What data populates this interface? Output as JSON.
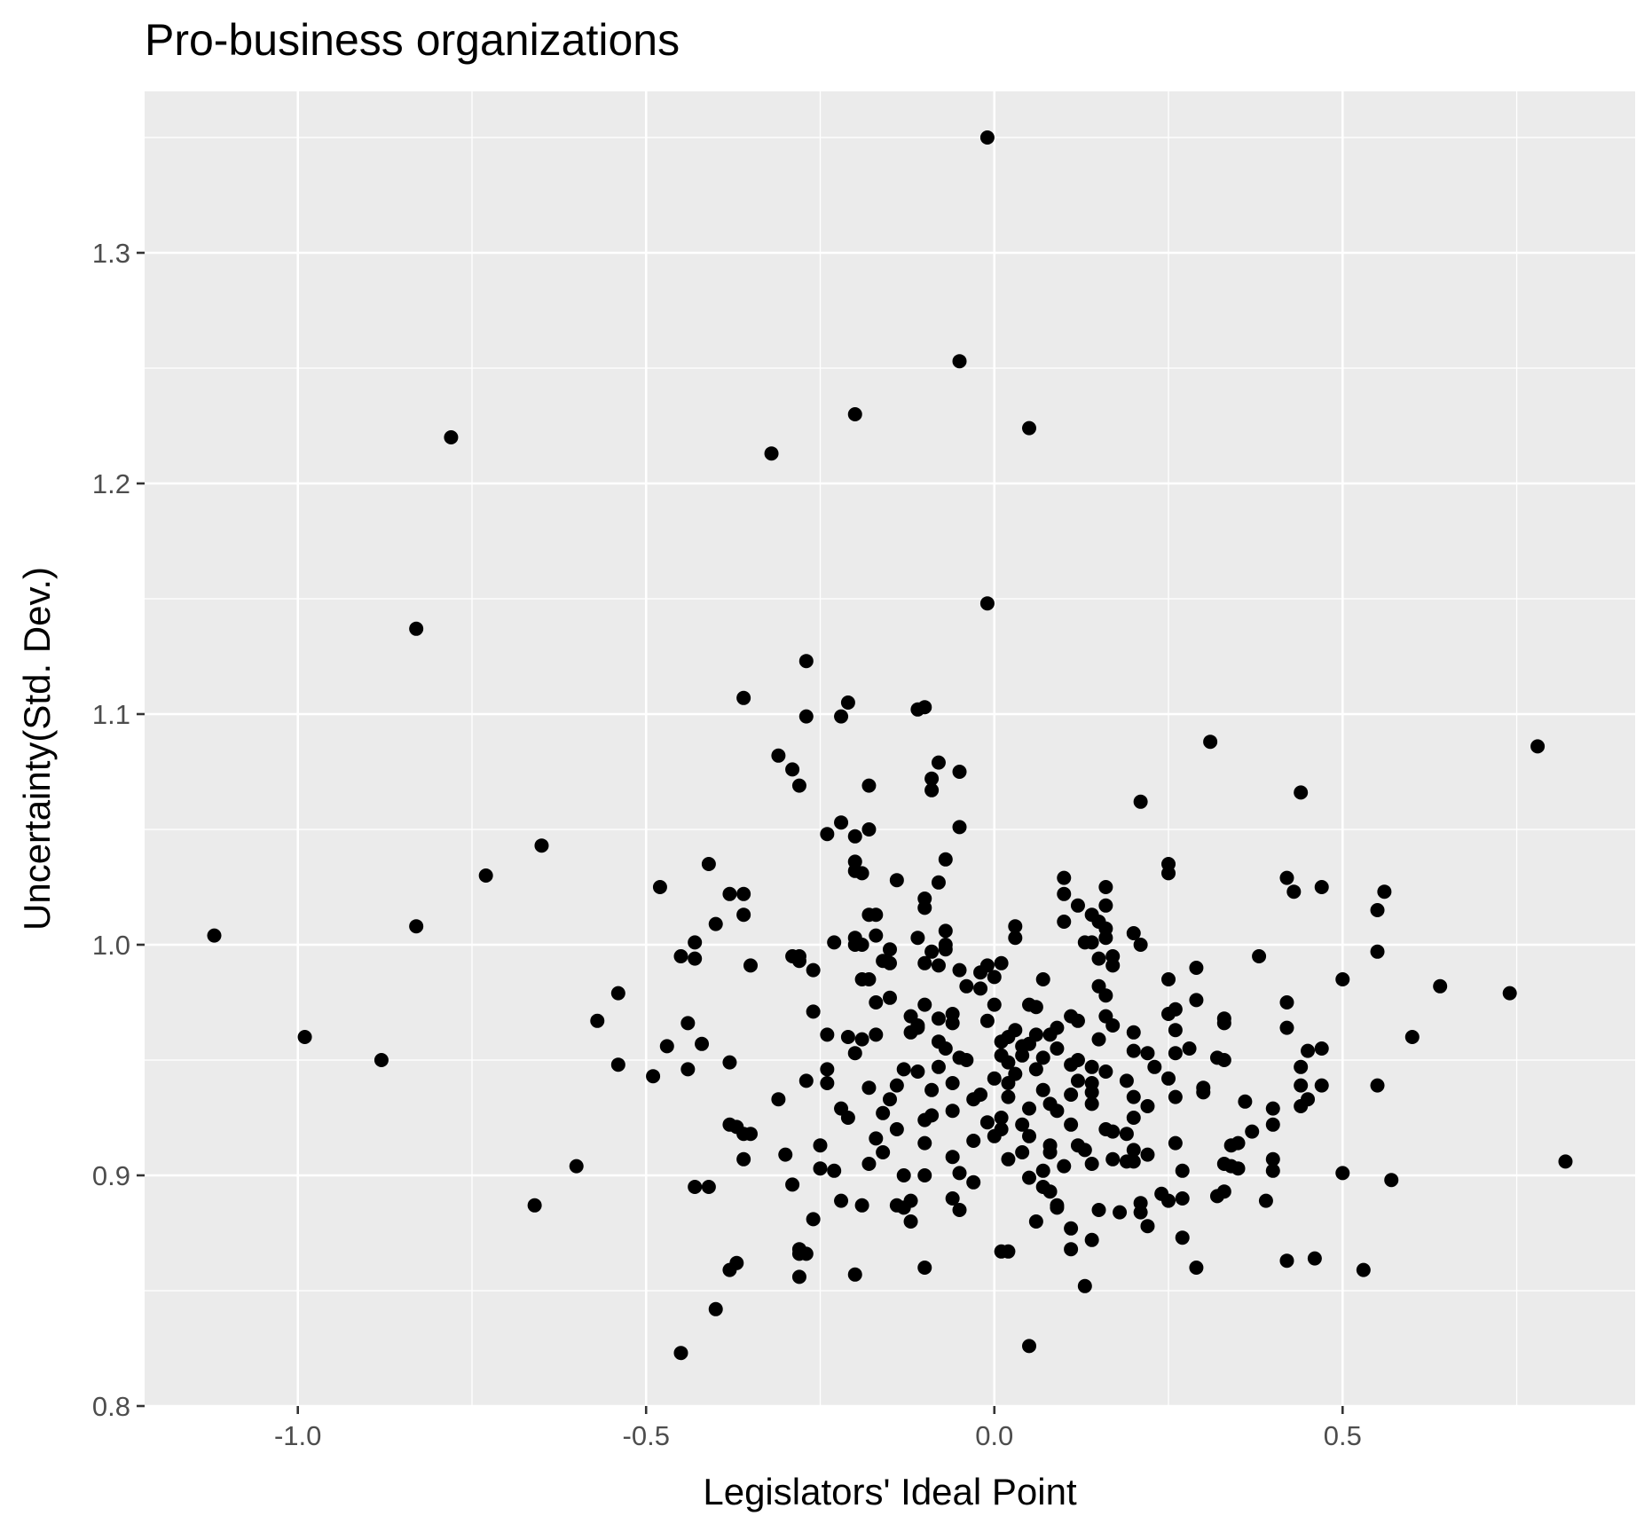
{
  "chart_data": {
    "type": "scatter",
    "title": "Pro-business organizations",
    "xlabel": "Legislators' Ideal Point",
    "ylabel": "Uncertainty(Std. Dev.)",
    "xlim": [
      -1.22,
      0.92
    ],
    "ylim": [
      0.8,
      1.37
    ],
    "xticks": [
      -1.0,
      -0.5,
      0.0,
      0.5
    ],
    "xtick_labels": [
      "-1.0",
      "-0.5",
      "0.0",
      "0.5"
    ],
    "yticks": [
      0.8,
      0.9,
      1.0,
      1.1,
      1.2,
      1.3
    ],
    "ytick_labels": [
      "0.8",
      "0.9",
      "1.0",
      "1.1",
      "1.2",
      "1.3"
    ],
    "grid": true,
    "legend": "none",
    "colors": {
      "panel": "#ebebeb",
      "point": "#000000",
      "grid": "#ffffff",
      "tick_text": "#4d4d4d"
    },
    "points": [
      [
        -0.01,
        1.35
      ],
      [
        -0.05,
        1.253
      ],
      [
        -0.2,
        1.23
      ],
      [
        0.05,
        1.224
      ],
      [
        -0.78,
        1.22
      ],
      [
        -0.32,
        1.213
      ],
      [
        -0.01,
        1.148
      ],
      [
        -0.83,
        1.137
      ],
      [
        -0.27,
        1.123
      ],
      [
        -0.36,
        1.107
      ],
      [
        -0.21,
        1.105
      ],
      [
        -0.1,
        1.103
      ],
      [
        -0.11,
        1.102
      ],
      [
        -0.27,
        1.099
      ],
      [
        -0.22,
        1.099
      ],
      [
        0.31,
        1.088
      ],
      [
        0.78,
        1.086
      ],
      [
        -0.31,
        1.082
      ],
      [
        -0.08,
        1.079
      ],
      [
        -0.29,
        1.076
      ],
      [
        -0.05,
        1.075
      ],
      [
        -0.09,
        1.072
      ],
      [
        -0.28,
        1.069
      ],
      [
        -0.18,
        1.069
      ],
      [
        -0.09,
        1.067
      ],
      [
        0.44,
        1.066
      ],
      [
        0.21,
        1.062
      ],
      [
        -0.22,
        1.053
      ],
      [
        -0.05,
        1.051
      ],
      [
        -0.18,
        1.05
      ],
      [
        -0.24,
        1.048
      ],
      [
        -0.2,
        1.047
      ],
      [
        -0.65,
        1.043
      ],
      [
        -0.07,
        1.037
      ],
      [
        -0.2,
        1.036
      ],
      [
        -0.41,
        1.035
      ],
      [
        0.25,
        1.035
      ],
      [
        -0.2,
        1.032
      ],
      [
        -0.19,
        1.031
      ],
      [
        0.25,
        1.031
      ],
      [
        -0.73,
        1.03
      ],
      [
        0.1,
        1.029
      ],
      [
        0.42,
        1.029
      ],
      [
        -0.14,
        1.028
      ],
      [
        -0.08,
        1.027
      ],
      [
        0.47,
        1.025
      ],
      [
        -0.48,
        1.025
      ],
      [
        0.16,
        1.025
      ],
      [
        0.43,
        1.023
      ],
      [
        0.56,
        1.023
      ],
      [
        -0.36,
        1.022
      ],
      [
        -0.38,
        1.022
      ],
      [
        0.1,
        1.022
      ],
      [
        -0.1,
        1.02
      ],
      [
        0.16,
        1.017
      ],
      [
        0.12,
        1.017
      ],
      [
        -0.1,
        1.016
      ],
      [
        0.55,
        1.015
      ],
      [
        -0.36,
        1.013
      ],
      [
        -0.17,
        1.013
      ],
      [
        -0.18,
        1.013
      ],
      [
        0.14,
        1.013
      ],
      [
        0.15,
        1.01
      ],
      [
        0.1,
        1.01
      ],
      [
        -0.4,
        1.009
      ],
      [
        -0.83,
        1.008
      ],
      [
        0.03,
        1.008
      ],
      [
        0.16,
        1.007
      ],
      [
        -0.07,
        1.006
      ],
      [
        0.2,
        1.005
      ],
      [
        -1.12,
        1.004
      ],
      [
        0.03,
        1.003
      ],
      [
        -0.17,
        1.004
      ],
      [
        -0.2,
        1.003
      ],
      [
        -0.11,
        1.003
      ],
      [
        0.16,
        1.003
      ],
      [
        -0.43,
        1.001
      ],
      [
        -0.23,
        1.001
      ],
      [
        0.14,
        1.001
      ],
      [
        0.13,
        1.001
      ],
      [
        -0.2,
        1.0
      ],
      [
        -0.19,
        1.0
      ],
      [
        0.21,
        1.0
      ],
      [
        -0.07,
        1.0
      ],
      [
        -0.07,
        0.998
      ],
      [
        0.55,
        0.997
      ],
      [
        -0.15,
        0.998
      ],
      [
        -0.09,
        0.997
      ],
      [
        0.38,
        0.995
      ],
      [
        -0.45,
        0.995
      ],
      [
        0.17,
        0.995
      ],
      [
        -0.28,
        0.995
      ],
      [
        -0.43,
        0.994
      ],
      [
        -0.29,
        0.995
      ],
      [
        0.15,
        0.994
      ],
      [
        -0.28,
        0.993
      ],
      [
        -0.16,
        0.993
      ],
      [
        0.01,
        0.992
      ],
      [
        -0.1,
        0.992
      ],
      [
        -0.15,
        0.992
      ],
      [
        -0.35,
        0.991
      ],
      [
        -0.01,
        0.991
      ],
      [
        0.17,
        0.991
      ],
      [
        -0.08,
        0.991
      ],
      [
        0.29,
        0.99
      ],
      [
        -0.26,
        0.989
      ],
      [
        -0.05,
        0.989
      ],
      [
        -0.02,
        0.988
      ],
      [
        0.0,
        0.986
      ],
      [
        0.07,
        0.985
      ],
      [
        -0.19,
        0.985
      ],
      [
        0.25,
        0.985
      ],
      [
        0.5,
        0.985
      ],
      [
        -0.18,
        0.985
      ],
      [
        0.15,
        0.982
      ],
      [
        -0.04,
        0.982
      ],
      [
        0.64,
        0.982
      ],
      [
        -0.02,
        0.981
      ],
      [
        -0.54,
        0.979
      ],
      [
        0.74,
        0.979
      ],
      [
        0.16,
        0.978
      ],
      [
        -0.15,
        0.977
      ],
      [
        0.29,
        0.976
      ],
      [
        -0.17,
        0.975
      ],
      [
        0.42,
        0.975
      ],
      [
        0.0,
        0.974
      ],
      [
        -0.1,
        0.974
      ],
      [
        0.05,
        0.974
      ],
      [
        0.06,
        0.973
      ],
      [
        0.26,
        0.972
      ],
      [
        -0.26,
        0.971
      ],
      [
        0.25,
        0.97
      ],
      [
        -0.06,
        0.97
      ],
      [
        0.16,
        0.969
      ],
      [
        -0.12,
        0.969
      ],
      [
        -0.01,
        0.967
      ],
      [
        0.11,
        0.969
      ],
      [
        0.33,
        0.968
      ],
      [
        -0.08,
        0.968
      ],
      [
        -0.57,
        0.967
      ],
      [
        0.12,
        0.967
      ],
      [
        -0.44,
        0.966
      ],
      [
        0.33,
        0.966
      ],
      [
        -0.06,
        0.966
      ],
      [
        -0.11,
        0.965
      ],
      [
        0.17,
        0.965
      ],
      [
        0.09,
        0.964
      ],
      [
        -0.11,
        0.964
      ],
      [
        0.42,
        0.964
      ],
      [
        0.03,
        0.963
      ],
      [
        -0.12,
        0.962
      ],
      [
        0.26,
        0.963
      ],
      [
        0.2,
        0.962
      ],
      [
        0.06,
        0.961
      ],
      [
        -0.17,
        0.961
      ],
      [
        0.08,
        0.961
      ],
      [
        -0.24,
        0.961
      ],
      [
        0.02,
        0.96
      ],
      [
        -0.99,
        0.96
      ],
      [
        0.6,
        0.96
      ],
      [
        -0.21,
        0.96
      ],
      [
        0.15,
        0.959
      ],
      [
        -0.19,
        0.959
      ],
      [
        0.01,
        0.958
      ],
      [
        -0.08,
        0.958
      ],
      [
        0.05,
        0.957
      ],
      [
        -0.42,
        0.957
      ],
      [
        -0.47,
        0.956
      ],
      [
        0.04,
        0.956
      ],
      [
        0.28,
        0.955
      ],
      [
        -0.07,
        0.955
      ],
      [
        0.09,
        0.955
      ],
      [
        0.47,
        0.955
      ],
      [
        0.2,
        0.954
      ],
      [
        0.45,
        0.954
      ],
      [
        -0.2,
        0.953
      ],
      [
        0.22,
        0.953
      ],
      [
        0.26,
        0.953
      ],
      [
        0.01,
        0.952
      ],
      [
        0.04,
        0.952
      ],
      [
        0.32,
        0.951
      ],
      [
        0.33,
        0.95
      ],
      [
        -0.05,
        0.951
      ],
      [
        0.07,
        0.951
      ],
      [
        0.12,
        0.95
      ],
      [
        -0.04,
        0.95
      ],
      [
        -0.88,
        0.95
      ],
      [
        -0.38,
        0.949
      ],
      [
        0.02,
        0.949
      ],
      [
        -0.54,
        0.948
      ],
      [
        0.11,
        0.948
      ],
      [
        0.14,
        0.947
      ],
      [
        0.23,
        0.947
      ],
      [
        -0.08,
        0.947
      ],
      [
        0.44,
        0.947
      ],
      [
        -0.13,
        0.946
      ],
      [
        -0.44,
        0.946
      ],
      [
        -0.24,
        0.946
      ],
      [
        0.06,
        0.946
      ],
      [
        0.16,
        0.945
      ],
      [
        -0.11,
        0.945
      ],
      [
        0.03,
        0.944
      ],
      [
        -0.49,
        0.943
      ],
      [
        0.25,
        0.942
      ],
      [
        0.0,
        0.942
      ],
      [
        0.12,
        0.941
      ],
      [
        0.19,
        0.941
      ],
      [
        -0.27,
        0.941
      ],
      [
        0.02,
        0.94
      ],
      [
        -0.24,
        0.94
      ],
      [
        0.14,
        0.94
      ],
      [
        -0.06,
        0.94
      ],
      [
        0.55,
        0.939
      ],
      [
        0.47,
        0.939
      ],
      [
        0.44,
        0.939
      ],
      [
        -0.14,
        0.939
      ],
      [
        -0.18,
        0.938
      ],
      [
        0.3,
        0.938
      ],
      [
        0.07,
        0.937
      ],
      [
        -0.09,
        0.937
      ],
      [
        0.14,
        0.936
      ],
      [
        0.11,
        0.935
      ],
      [
        0.3,
        0.936
      ],
      [
        -0.02,
        0.935
      ],
      [
        0.02,
        0.934
      ],
      [
        0.2,
        0.934
      ],
      [
        0.26,
        0.934
      ],
      [
        -0.03,
        0.933
      ],
      [
        -0.15,
        0.933
      ],
      [
        0.45,
        0.933
      ],
      [
        -0.31,
        0.933
      ],
      [
        0.36,
        0.932
      ],
      [
        0.08,
        0.931
      ],
      [
        0.14,
        0.931
      ],
      [
        0.22,
        0.93
      ],
      [
        0.44,
        0.93
      ],
      [
        -0.22,
        0.929
      ],
      [
        0.4,
        0.929
      ],
      [
        0.05,
        0.929
      ],
      [
        -0.06,
        0.928
      ],
      [
        0.09,
        0.928
      ],
      [
        -0.16,
        0.927
      ],
      [
        -0.09,
        0.926
      ],
      [
        0.01,
        0.925
      ],
      [
        0.2,
        0.925
      ],
      [
        -0.21,
        0.925
      ],
      [
        -0.1,
        0.924
      ],
      [
        -0.01,
        0.923
      ],
      [
        0.04,
        0.922
      ],
      [
        0.11,
        0.922
      ],
      [
        0.4,
        0.922
      ],
      [
        -0.38,
        0.922
      ],
      [
        -0.37,
        0.921
      ],
      [
        0.01,
        0.92
      ],
      [
        0.16,
        0.92
      ],
      [
        -0.14,
        0.92
      ],
      [
        0.17,
        0.919
      ],
      [
        0.37,
        0.919
      ],
      [
        -0.35,
        0.918
      ],
      [
        0.19,
        0.918
      ],
      [
        -0.36,
        0.918
      ],
      [
        0.05,
        0.917
      ],
      [
        0.0,
        0.917
      ],
      [
        -0.17,
        0.916
      ],
      [
        -0.03,
        0.915
      ],
      [
        -0.1,
        0.914
      ],
      [
        0.08,
        0.913
      ],
      [
        0.12,
        0.913
      ],
      [
        -0.25,
        0.913
      ],
      [
        0.26,
        0.914
      ],
      [
        0.35,
        0.914
      ],
      [
        0.34,
        0.913
      ],
      [
        0.13,
        0.911
      ],
      [
        0.2,
        0.911
      ],
      [
        -0.16,
        0.91
      ],
      [
        0.08,
        0.91
      ],
      [
        0.04,
        0.91
      ],
      [
        -0.3,
        0.909
      ],
      [
        0.22,
        0.909
      ],
      [
        -0.06,
        0.908
      ],
      [
        0.4,
        0.907
      ],
      [
        0.17,
        0.907
      ],
      [
        0.02,
        0.907
      ],
      [
        -0.36,
        0.907
      ],
      [
        0.82,
        0.906
      ],
      [
        0.19,
        0.906
      ],
      [
        0.2,
        0.906
      ],
      [
        0.14,
        0.905
      ],
      [
        0.33,
        0.905
      ],
      [
        -0.18,
        0.905
      ],
      [
        0.1,
        0.904
      ],
      [
        0.34,
        0.904
      ],
      [
        -0.6,
        0.904
      ],
      [
        -0.25,
        0.903
      ],
      [
        0.35,
        0.903
      ],
      [
        0.07,
        0.902
      ],
      [
        -0.23,
        0.902
      ],
      [
        0.4,
        0.902
      ],
      [
        0.27,
        0.902
      ],
      [
        -0.05,
        0.901
      ],
      [
        0.5,
        0.901
      ],
      [
        -0.13,
        0.9
      ],
      [
        -0.1,
        0.9
      ],
      [
        0.05,
        0.899
      ],
      [
        0.57,
        0.898
      ],
      [
        -0.03,
        0.897
      ],
      [
        -0.29,
        0.896
      ],
      [
        -0.43,
        0.895
      ],
      [
        -0.41,
        0.895
      ],
      [
        0.07,
        0.895
      ],
      [
        0.33,
        0.893
      ],
      [
        0.08,
        0.893
      ],
      [
        0.24,
        0.892
      ],
      [
        0.32,
        0.891
      ],
      [
        0.27,
        0.89
      ],
      [
        -0.06,
        0.89
      ],
      [
        0.25,
        0.889
      ],
      [
        -0.12,
        0.889
      ],
      [
        0.39,
        0.889
      ],
      [
        -0.22,
        0.889
      ],
      [
        0.21,
        0.888
      ],
      [
        0.09,
        0.887
      ],
      [
        -0.14,
        0.887
      ],
      [
        0.09,
        0.886
      ],
      [
        -0.66,
        0.887
      ],
      [
        -0.19,
        0.887
      ],
      [
        -0.13,
        0.886
      ],
      [
        0.15,
        0.885
      ],
      [
        -0.05,
        0.885
      ],
      [
        0.21,
        0.884
      ],
      [
        0.18,
        0.884
      ],
      [
        -0.26,
        0.881
      ],
      [
        -0.12,
        0.88
      ],
      [
        0.06,
        0.88
      ],
      [
        0.22,
        0.878
      ],
      [
        0.11,
        0.877
      ],
      [
        0.27,
        0.873
      ],
      [
        0.14,
        0.872
      ],
      [
        0.11,
        0.868
      ],
      [
        0.02,
        0.867
      ],
      [
        0.01,
        0.867
      ],
      [
        -0.28,
        0.868
      ],
      [
        -0.27,
        0.866
      ],
      [
        -0.28,
        0.866
      ],
      [
        0.46,
        0.864
      ],
      [
        0.42,
        0.863
      ],
      [
        -0.37,
        0.862
      ],
      [
        0.29,
        0.86
      ],
      [
        -0.38,
        0.859
      ],
      [
        -0.1,
        0.86
      ],
      [
        0.53,
        0.859
      ],
      [
        -0.2,
        0.857
      ],
      [
        -0.28,
        0.856
      ],
      [
        0.13,
        0.852
      ],
      [
        -0.4,
        0.842
      ],
      [
        0.05,
        0.826
      ],
      [
        -0.45,
        0.823
      ]
    ]
  }
}
